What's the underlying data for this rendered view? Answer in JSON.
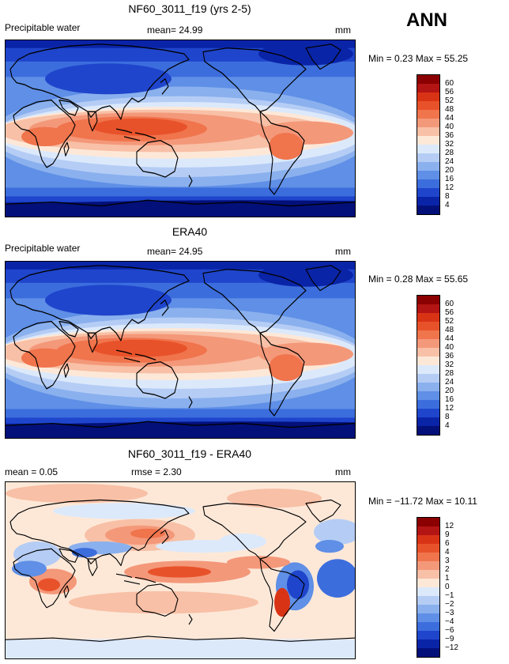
{
  "season": "ANN",
  "panels": [
    {
      "title": "NF60_3011_f19 (yrs 2-5)",
      "left_label": "Precipitable water",
      "middle_label": "mean=  24.99",
      "units": "mm",
      "stats": "Min =    0.23  Max =   55.25",
      "colorbar_ticks": [
        "60",
        "56",
        "52",
        "48",
        "44",
        "40",
        "36",
        "32",
        "28",
        "24",
        "20",
        "16",
        "12",
        "8",
        "4"
      ],
      "colorbar_colors": [
        "#8b0000",
        "#b31414",
        "#d93316",
        "#e8522a",
        "#f0744c",
        "#f4987a",
        "#f8c0a6",
        "#fde8d8",
        "#dce9fb",
        "#b5cdf5",
        "#8ab0ee",
        "#5f8fe6",
        "#3c6ddd",
        "#1f45cc",
        "#0a24a8",
        "#03107a"
      ]
    },
    {
      "title": "ERA40",
      "left_label": "Precipitable water",
      "middle_label": "mean=  24.95",
      "units": "mm",
      "stats": "Min =    0.28  Max =   55.65",
      "colorbar_ticks": [
        "60",
        "56",
        "52",
        "48",
        "44",
        "40",
        "36",
        "32",
        "28",
        "24",
        "20",
        "16",
        "12",
        "8",
        "4"
      ],
      "colorbar_colors": [
        "#8b0000",
        "#b31414",
        "#d93316",
        "#e8522a",
        "#f0744c",
        "#f4987a",
        "#f8c0a6",
        "#fde8d8",
        "#dce9fb",
        "#b5cdf5",
        "#8ab0ee",
        "#5f8fe6",
        "#3c6ddd",
        "#1f45cc",
        "#0a24a8",
        "#03107a"
      ]
    },
    {
      "title": "NF60_3011_f19 - ERA40",
      "left_label": "mean =    0.05",
      "middle_label": "rmse =    2.30",
      "units": "mm",
      "stats": "Min = −11.72  Max =   10.11",
      "colorbar_ticks": [
        "12",
        "9",
        "6",
        "4",
        "3",
        "2",
        "1",
        "0",
        "−1",
        "−2",
        "−3",
        "−4",
        "−6",
        "−9",
        "−12"
      ],
      "colorbar_colors": [
        "#8b0000",
        "#b31414",
        "#d93316",
        "#e8522a",
        "#f0744c",
        "#f4987a",
        "#f8c0a6",
        "#fde8d8",
        "#dce9fb",
        "#b5cdf5",
        "#8ab0ee",
        "#5f8fe6",
        "#3c6ddd",
        "#1f45cc",
        "#0a24a8",
        "#03107a"
      ]
    }
  ]
}
